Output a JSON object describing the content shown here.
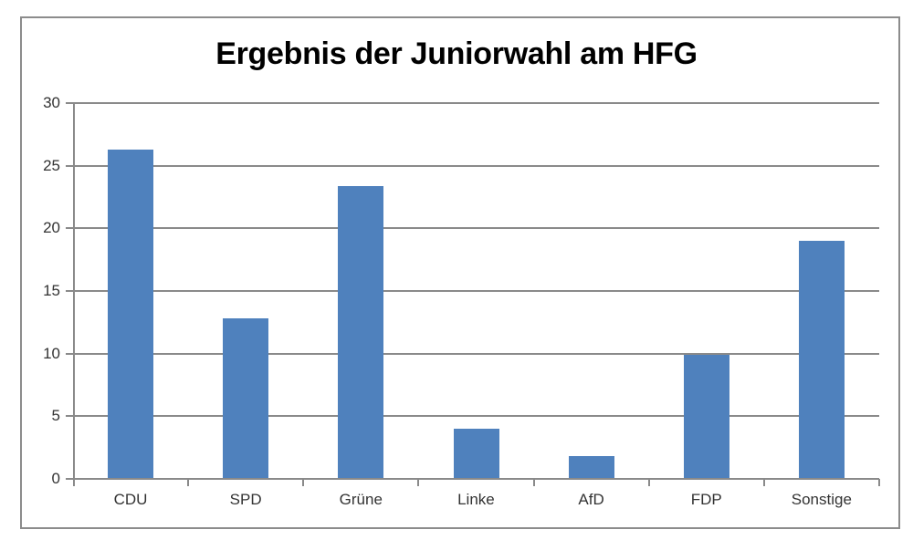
{
  "chart_data": {
    "type": "bar",
    "title": "Ergebnis der Juniorwahl am HFG",
    "xlabel": "",
    "ylabel": "",
    "categories": [
      "CDU",
      "SPD",
      "Grüne",
      "Linke",
      "AfD",
      "FDP",
      "Sonstige"
    ],
    "values": [
      26.3,
      12.8,
      23.4,
      4.0,
      1.8,
      9.9,
      19.0
    ],
    "ylim": [
      0,
      30
    ],
    "yticks": [
      0,
      5,
      10,
      15,
      20,
      25,
      30
    ],
    "grid": true,
    "legend": "none",
    "bar_color": "#4f81bd"
  }
}
